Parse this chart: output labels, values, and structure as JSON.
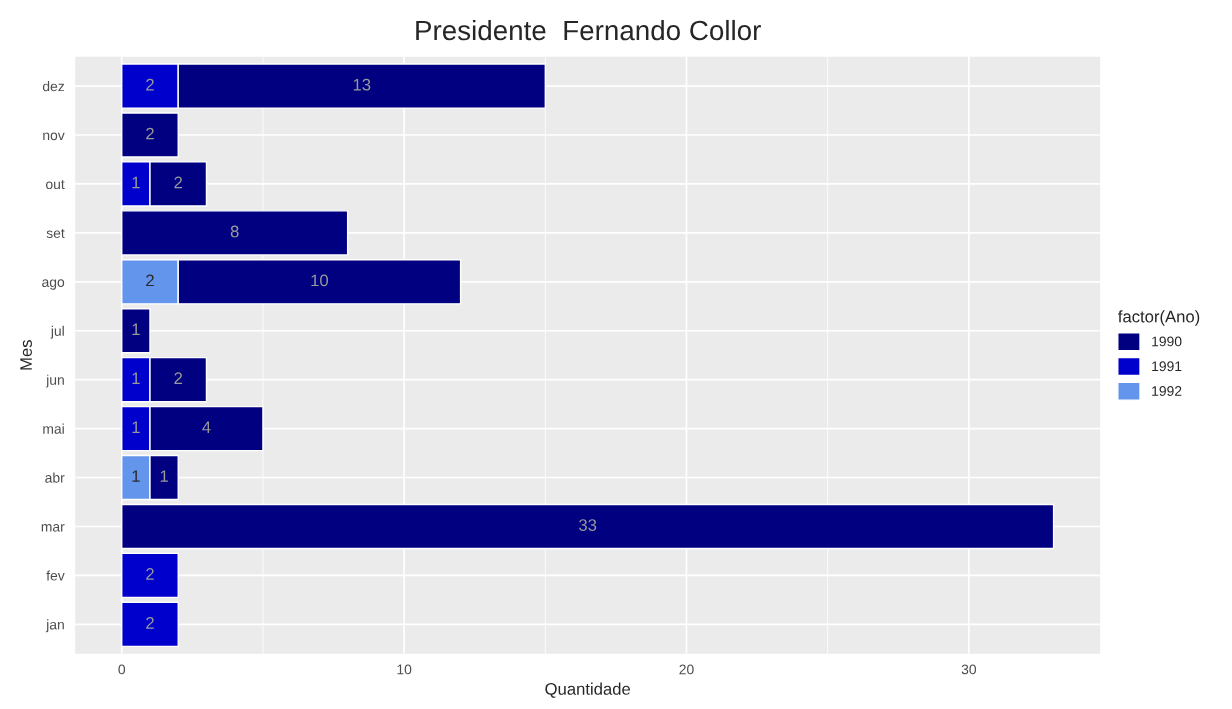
{
  "chart_data": {
    "type": "bar",
    "orientation": "horizontal",
    "stacked": true,
    "title": "Presidente  Fernando Collor",
    "xlabel": "Quantidade",
    "ylabel": "Mes",
    "legend_title": "factor(Ano)",
    "categories": [
      "dez",
      "nov",
      "out",
      "set",
      "ago",
      "jul",
      "jun",
      "mai",
      "abr",
      "mar",
      "fev",
      "jan"
    ],
    "series": [
      {
        "name": "1992",
        "color": "#6495ed",
        "values": [
          null,
          null,
          null,
          null,
          2,
          null,
          null,
          null,
          1,
          null,
          null,
          null
        ]
      },
      {
        "name": "1991",
        "color": "#0000cd",
        "values": [
          2,
          null,
          1,
          null,
          null,
          null,
          1,
          1,
          null,
          null,
          2,
          2
        ]
      },
      {
        "name": "1990",
        "color": "#000080",
        "values": [
          13,
          2,
          2,
          8,
          10,
          1,
          2,
          4,
          1,
          33,
          null,
          null
        ]
      }
    ],
    "xlim": [
      -1.65,
      34.65
    ],
    "xticks": [
      0,
      10,
      20,
      30
    ],
    "grid": true,
    "legend": "right",
    "data_labels": true
  }
}
